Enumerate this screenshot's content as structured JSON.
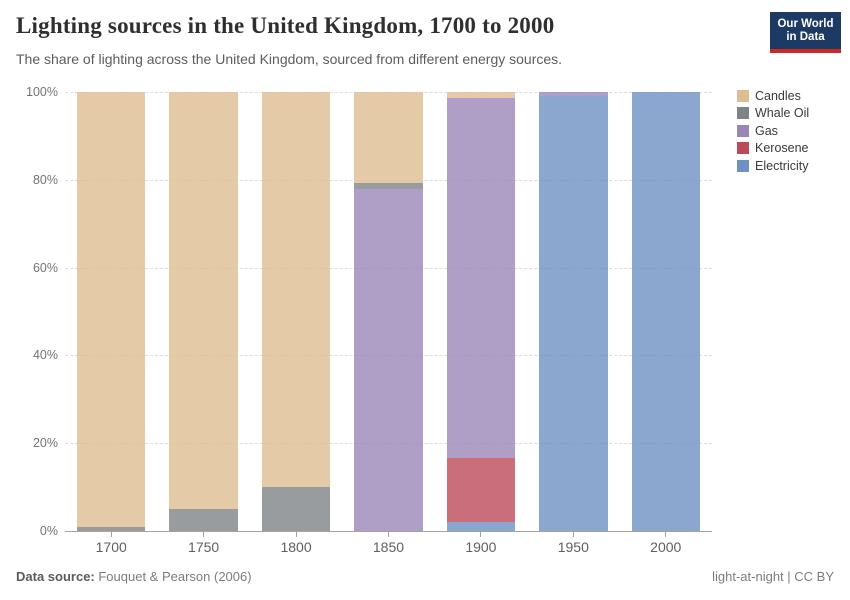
{
  "header": {
    "title": "Lighting sources in the United Kingdom, 1700 to 2000",
    "subtitle": "The share of lighting across the United Kingdom, sourced from different energy sources.",
    "logo": {
      "line1": "Our World",
      "line2": "in Data",
      "bg_color": "#1c3a63",
      "stripe_color": "#cb2a24"
    }
  },
  "chart_data": {
    "type": "bar",
    "stacked": true,
    "title": "Lighting sources in the United Kingdom, 1700 to 2000",
    "xlabel": "",
    "ylabel": "",
    "ylim": [
      0,
      100
    ],
    "grid": "horizontal-dashed",
    "legend_position": "right",
    "categories": [
      "1700",
      "1750",
      "1800",
      "1850",
      "1900",
      "1950",
      "2000"
    ],
    "series": [
      {
        "name": "Candles",
        "color": "#dfbd92",
        "values": [
          99,
          95,
          90,
          20.7,
          1.4,
          0,
          0
        ]
      },
      {
        "name": "Whale Oil",
        "color": "#7e8387",
        "values": [
          1,
          5,
          10,
          1.4,
          0,
          0,
          0
        ]
      },
      {
        "name": "Gas",
        "color": "#9b86b8",
        "values": [
          0,
          0,
          0,
          77.9,
          81.9,
          1,
          0
        ]
      },
      {
        "name": "Kerosene",
        "color": "#bb4a59",
        "values": [
          0,
          0,
          0,
          0,
          14.7,
          0,
          0
        ]
      },
      {
        "name": "Electricity",
        "color": "#6e90c3",
        "values": [
          0,
          0,
          0,
          0,
          2,
          99,
          100
        ]
      }
    ],
    "y_ticks": [
      {
        "value": 0,
        "label": "0%"
      },
      {
        "value": 20,
        "label": "20%"
      },
      {
        "value": 40,
        "label": "40%"
      },
      {
        "value": 60,
        "label": "60%"
      },
      {
        "value": 80,
        "label": "80%"
      },
      {
        "value": 100,
        "label": "100%"
      }
    ]
  },
  "footer": {
    "data_source_label": "Data source:",
    "data_source_value": " Fouquet & Pearson (2006)",
    "credit": "light-at-night | CC BY"
  }
}
